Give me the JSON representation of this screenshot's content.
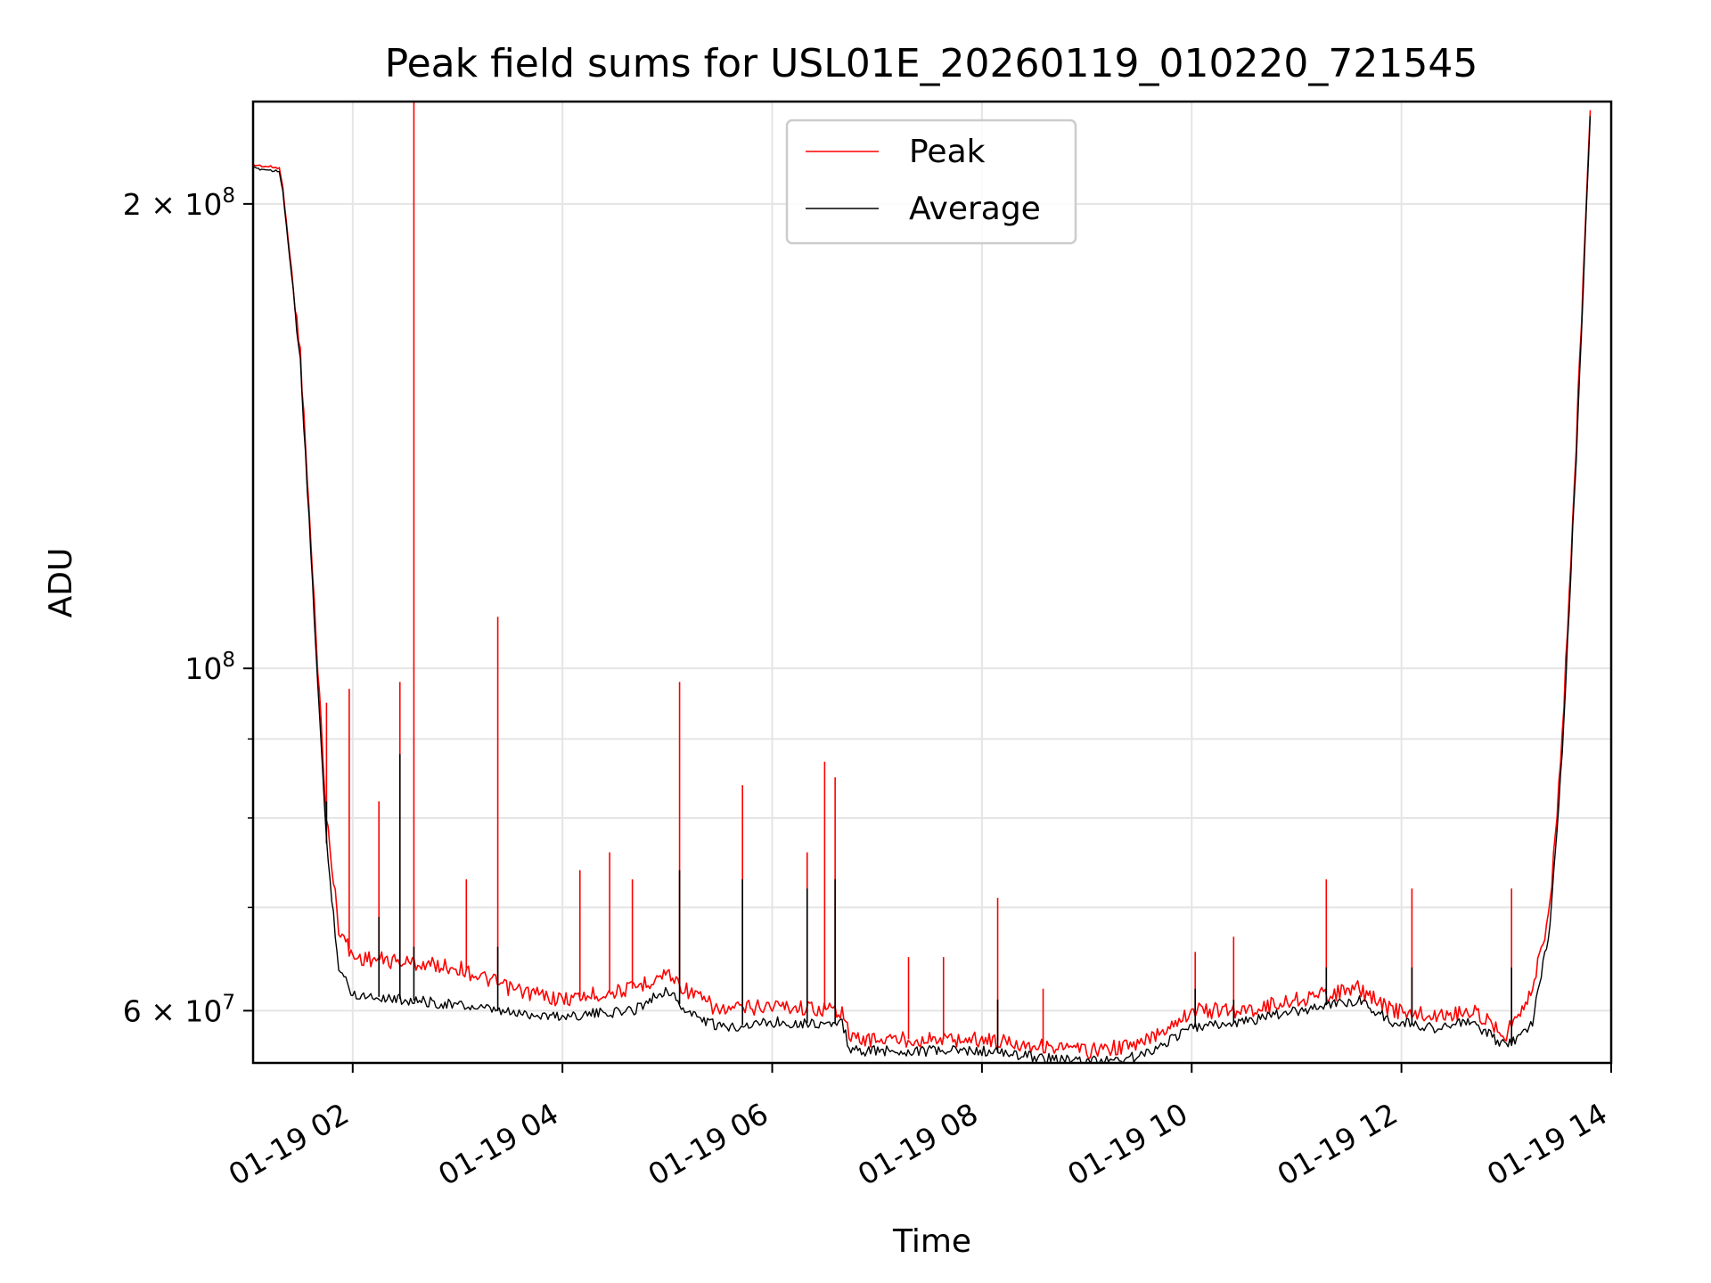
{
  "chart_data": {
    "type": "line",
    "title": "Peak field sums for USL01E_20260119_010220_721545",
    "xlabel": "Time",
    "ylabel": "ADU",
    "yscale": "log",
    "ylim": [
      55500000,
      233000000
    ],
    "xlim": [
      "2026-01-19 01:03",
      "2026-01-19 14:00"
    ],
    "grid": true,
    "legend_position": "upper center",
    "x_ticks": [
      "2026-01-19 02:00",
      "2026-01-19 04:00",
      "2026-01-19 06:00",
      "2026-01-19 08:00",
      "2026-01-19 10:00",
      "2026-01-19 12:00",
      "2026-01-19 14:00"
    ],
    "x_tick_labels": [
      "01-19 02",
      "01-19 04",
      "01-19 06",
      "01-19 08",
      "01-19 10",
      "01-19 12",
      "01-19 14"
    ],
    "y_ticks": [
      {
        "value": 60000000,
        "base": "6",
        "exp": "7"
      },
      {
        "value": 100000000,
        "base": "",
        "exp": "8"
      },
      {
        "value": 200000000,
        "base": "2",
        "exp": "8"
      }
    ],
    "y_minor_ticks": [
      70000000,
      80000000,
      90000000
    ],
    "series": [
      {
        "name": "Peak",
        "color": "#ff0000",
        "points": [
          [
            "2026-01-19 01:03",
            212000000
          ],
          [
            "2026-01-19 01:18",
            211000000
          ],
          [
            "2026-01-19 01:20",
            205000000
          ],
          [
            "2026-01-19 01:30",
            160000000
          ],
          [
            "2026-01-19 01:38",
            110000000
          ],
          [
            "2026-01-19 01:45",
            80000000
          ],
          [
            "2026-01-19 01:52",
            68000000
          ],
          [
            "2026-01-19 02:00",
            65000000
          ],
          [
            "2026-01-19 02:30",
            64500000
          ],
          [
            "2026-01-19 03:00",
            64000000
          ],
          [
            "2026-01-19 03:30",
            62000000
          ],
          [
            "2026-01-19 04:00",
            61000000
          ],
          [
            "2026-01-19 04:40",
            62000000
          ],
          [
            "2026-01-19 05:00",
            63500000
          ],
          [
            "2026-01-19 05:10",
            62000000
          ],
          [
            "2026-01-19 05:30",
            60000000
          ],
          [
            "2026-01-19 06:00",
            60500000
          ],
          [
            "2026-01-19 06:40",
            60000000
          ],
          [
            "2026-01-19 06:45",
            57500000
          ],
          [
            "2026-01-19 07:30",
            57500000
          ],
          [
            "2026-01-19 08:00",
            57500000
          ],
          [
            "2026-01-19 08:30",
            57000000
          ],
          [
            "2026-01-19 09:00",
            56500000
          ],
          [
            "2026-01-19 09:30",
            57000000
          ],
          [
            "2026-01-19 10:00",
            60000000
          ],
          [
            "2026-01-19 10:30",
            60000000
          ],
          [
            "2026-01-19 11:00",
            61000000
          ],
          [
            "2026-01-19 11:35",
            62000000
          ],
          [
            "2026-01-19 11:55",
            60000000
          ],
          [
            "2026-01-19 12:20",
            59500000
          ],
          [
            "2026-01-19 12:40",
            60000000
          ],
          [
            "2026-01-19 13:00",
            58000000
          ],
          [
            "2026-01-19 13:15",
            62000000
          ],
          [
            "2026-01-19 13:25",
            70000000
          ],
          [
            "2026-01-19 13:32",
            90000000
          ],
          [
            "2026-01-19 13:40",
            140000000
          ],
          [
            "2026-01-19 13:48",
            230000000
          ]
        ],
        "spikes": [
          [
            "2026-01-19 01:45",
            95000000
          ],
          [
            "2026-01-19 01:58",
            97000000
          ],
          [
            "2026-01-19 02:15",
            82000000
          ],
          [
            "2026-01-19 02:27",
            98000000
          ],
          [
            "2026-01-19 02:35",
            233000000
          ],
          [
            "2026-01-19 03:05",
            73000000
          ],
          [
            "2026-01-19 03:23",
            108000000
          ],
          [
            "2026-01-19 04:10",
            74000000
          ],
          [
            "2026-01-19 04:27",
            76000000
          ],
          [
            "2026-01-19 04:40",
            73000000
          ],
          [
            "2026-01-19 05:07",
            98000000
          ],
          [
            "2026-01-19 05:43",
            84000000
          ],
          [
            "2026-01-19 06:20",
            76000000
          ],
          [
            "2026-01-19 06:30",
            87000000
          ],
          [
            "2026-01-19 06:36",
            85000000
          ],
          [
            "2026-01-19 07:18",
            65000000
          ],
          [
            "2026-01-19 07:38",
            65000000
          ],
          [
            "2026-01-19 08:09",
            71000000
          ],
          [
            "2026-01-19 08:35",
            62000000
          ],
          [
            "2026-01-19 10:02",
            65500000
          ],
          [
            "2026-01-19 10:24",
            67000000
          ],
          [
            "2026-01-19 11:17",
            73000000
          ],
          [
            "2026-01-19 12:06",
            72000000
          ],
          [
            "2026-01-19 13:03",
            72000000
          ]
        ]
      },
      {
        "name": "Average",
        "color": "#000000",
        "points": [
          [
            "2026-01-19 01:03",
            211000000
          ],
          [
            "2026-01-19 01:18",
            210000000
          ],
          [
            "2026-01-19 01:20",
            204000000
          ],
          [
            "2026-01-19 01:30",
            158000000
          ],
          [
            "2026-01-19 01:38",
            108000000
          ],
          [
            "2026-01-19 01:45",
            77000000
          ],
          [
            "2026-01-19 01:52",
            64000000
          ],
          [
            "2026-01-19 02:00",
            61500000
          ],
          [
            "2026-01-19 02:30",
            61000000
          ],
          [
            "2026-01-19 03:00",
            60500000
          ],
          [
            "2026-01-19 03:30",
            59800000
          ],
          [
            "2026-01-19 04:00",
            59500000
          ],
          [
            "2026-01-19 04:40",
            60000000
          ],
          [
            "2026-01-19 05:00",
            62000000
          ],
          [
            "2026-01-19 05:10",
            60000000
          ],
          [
            "2026-01-19 05:30",
            58500000
          ],
          [
            "2026-01-19 06:00",
            59000000
          ],
          [
            "2026-01-19 06:40",
            58800000
          ],
          [
            "2026-01-19 06:45",
            56500000
          ],
          [
            "2026-01-19 07:30",
            56500000
          ],
          [
            "2026-01-19 08:00",
            56500000
          ],
          [
            "2026-01-19 08:30",
            56000000
          ],
          [
            "2026-01-19 09:00",
            55600000
          ],
          [
            "2026-01-19 09:30",
            56000000
          ],
          [
            "2026-01-19 10:00",
            58500000
          ],
          [
            "2026-01-19 10:30",
            59000000
          ],
          [
            "2026-01-19 11:00",
            60000000
          ],
          [
            "2026-01-19 11:35",
            61000000
          ],
          [
            "2026-01-19 11:55",
            59000000
          ],
          [
            "2026-01-19 12:20",
            58500000
          ],
          [
            "2026-01-19 12:40",
            59000000
          ],
          [
            "2026-01-19 13:00",
            56800000
          ],
          [
            "2026-01-19 13:15",
            59000000
          ],
          [
            "2026-01-19 13:25",
            68000000
          ],
          [
            "2026-01-19 13:32",
            88000000
          ],
          [
            "2026-01-19 13:40",
            137000000
          ],
          [
            "2026-01-19 13:48",
            228000000
          ]
        ],
        "spikes": [
          [
            "2026-01-19 01:45",
            82000000
          ],
          [
            "2026-01-19 02:15",
            69000000
          ],
          [
            "2026-01-19 02:27",
            88000000
          ],
          [
            "2026-01-19 02:35",
            66000000
          ],
          [
            "2026-01-19 03:23",
            66000000
          ],
          [
            "2026-01-19 05:07",
            74000000
          ],
          [
            "2026-01-19 05:43",
            73000000
          ],
          [
            "2026-01-19 06:20",
            72000000
          ],
          [
            "2026-01-19 06:36",
            73000000
          ],
          [
            "2026-01-19 08:09",
            61000000
          ],
          [
            "2026-01-19 10:02",
            62000000
          ],
          [
            "2026-01-19 10:24",
            61000000
          ],
          [
            "2026-01-19 11:17",
            64000000
          ],
          [
            "2026-01-19 12:06",
            64000000
          ],
          [
            "2026-01-19 13:03",
            64000000
          ]
        ]
      }
    ]
  }
}
